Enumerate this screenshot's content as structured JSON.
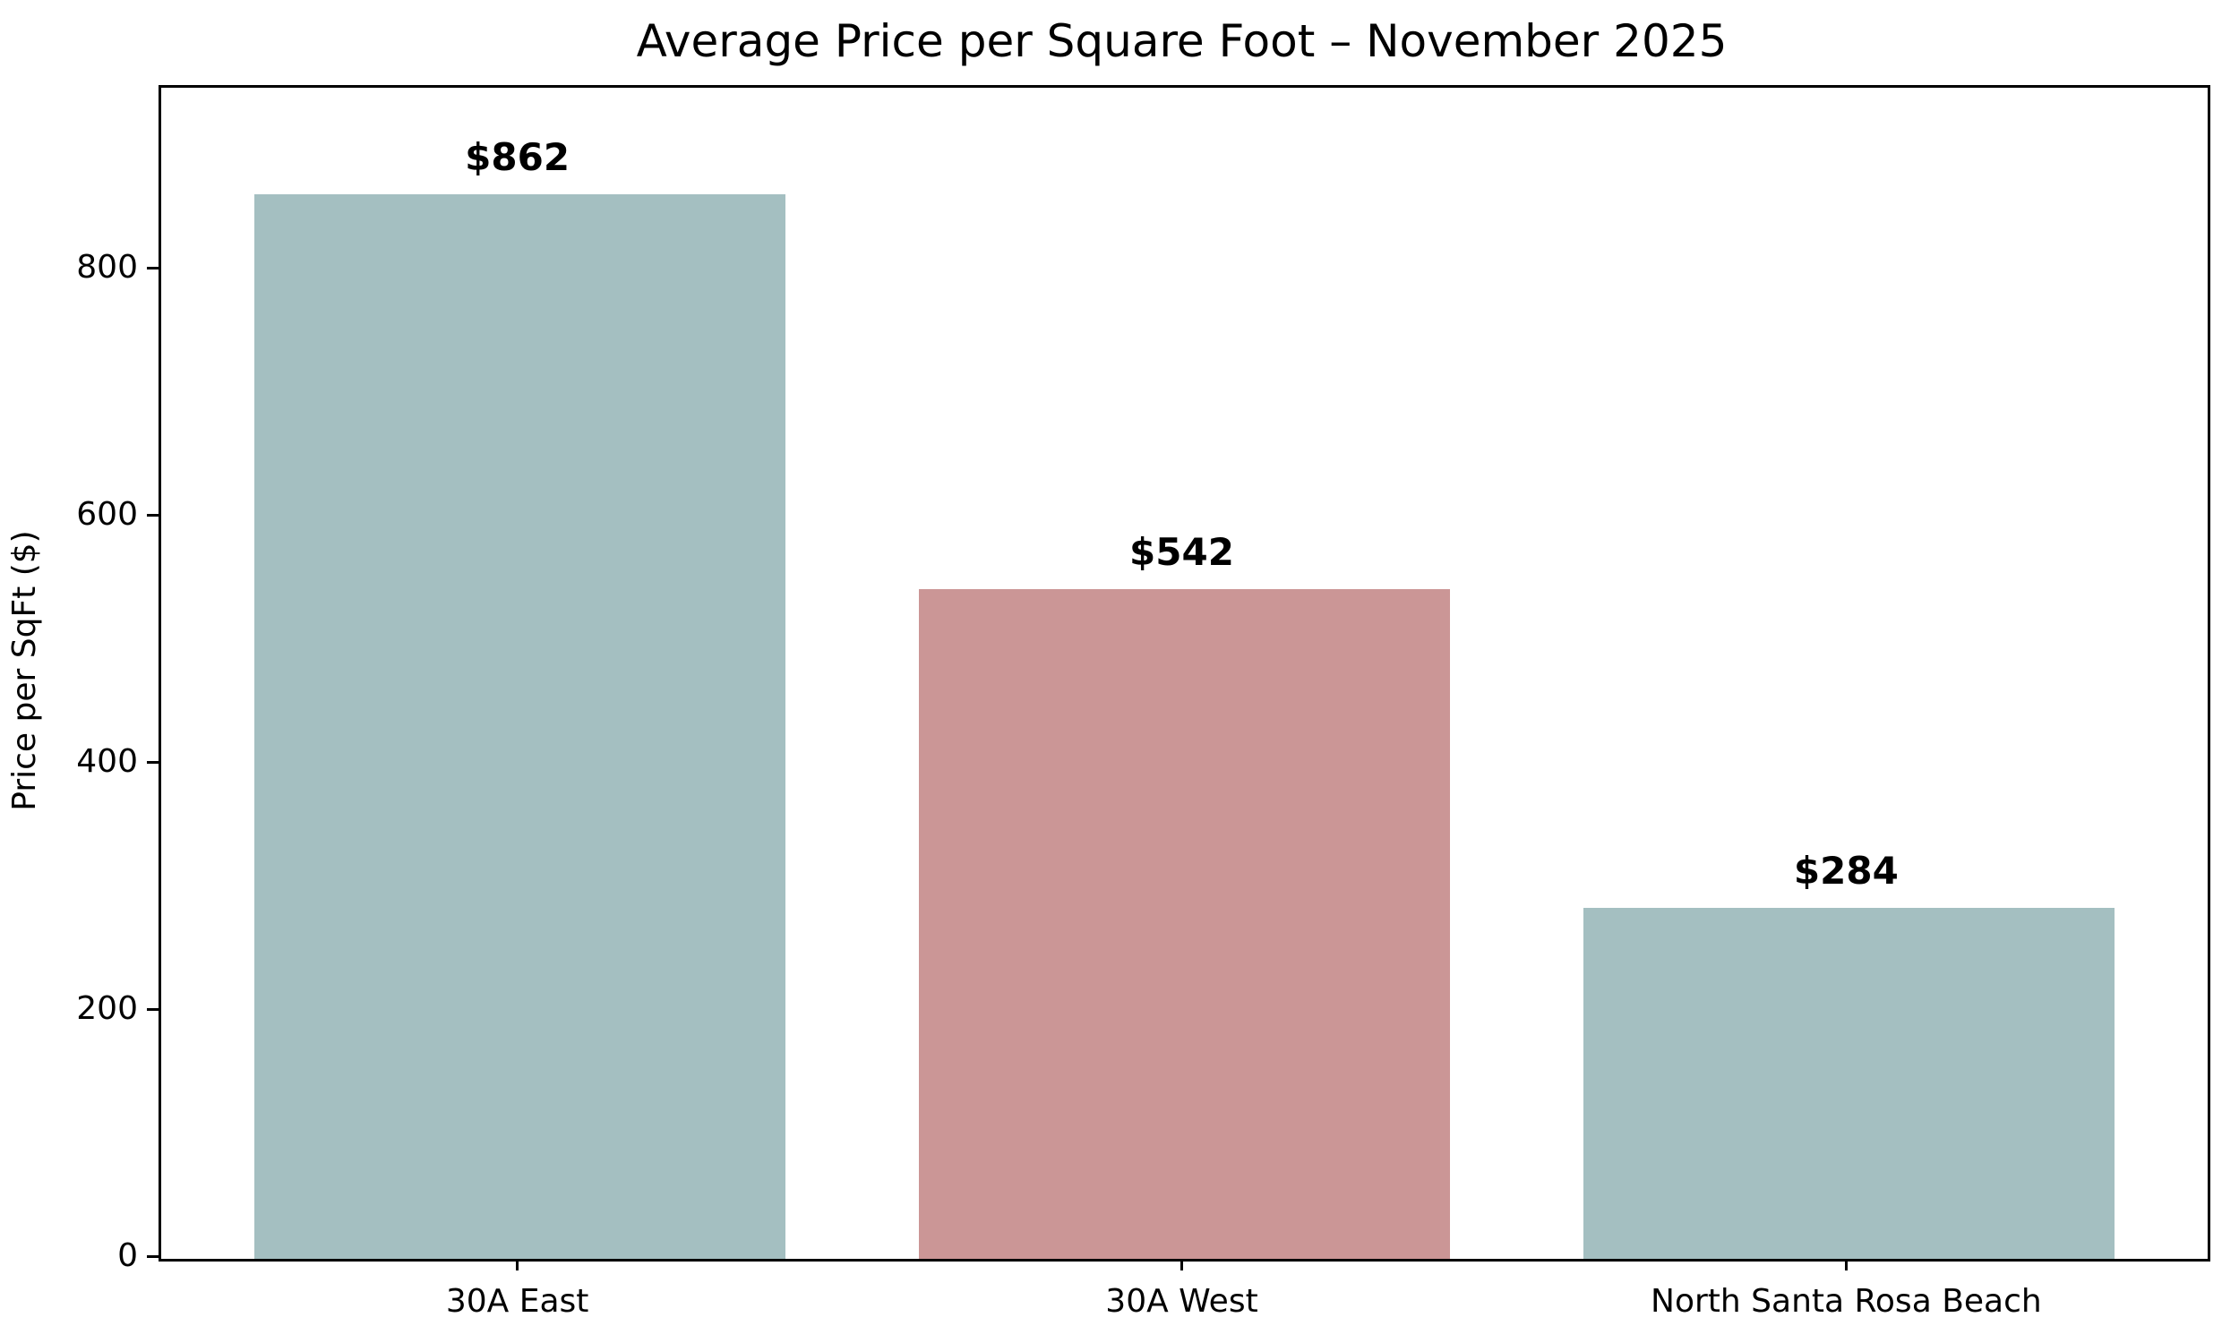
{
  "chart_data": {
    "type": "bar",
    "title": "Average Price per Square Foot – November 2025",
    "ylabel": "Price per SqFt ($)",
    "xlabel": "",
    "categories": [
      "30A East",
      "30A West",
      "North Santa Rosa Beach"
    ],
    "values": [
      862,
      542,
      284
    ],
    "bar_labels": [
      "$862",
      "$542",
      "$284"
    ],
    "bar_colors": [
      "#a4bfc1",
      "#cb9696",
      "#a4bfc1"
    ],
    "ylim": [
      0,
      948
    ],
    "yticks": [
      0,
      200,
      400,
      600,
      800
    ],
    "grid": false,
    "legend": null,
    "bar_width_fraction": 0.8,
    "x_axis_units_span": 3.08,
    "x_axis_first_center_offset": 0.54
  },
  "colors": {
    "background": "#ffffff",
    "axis": "#000000",
    "text": "#000000"
  }
}
